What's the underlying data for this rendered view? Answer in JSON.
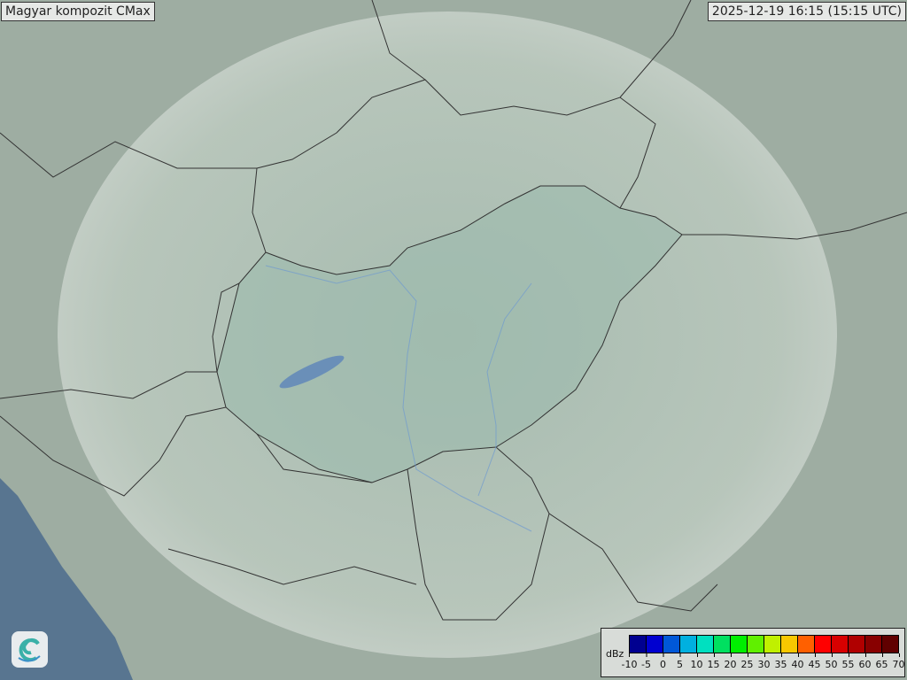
{
  "header": {
    "title": "Magyar kompozit  CMax",
    "timestamp": "2025-12-19 16:15 (15:15 UTC)"
  },
  "legend": {
    "unit": "dBz",
    "ticks": [
      "-10",
      "-5",
      "0",
      "5",
      "10",
      "15",
      "20",
      "25",
      "30",
      "35",
      "40",
      "45",
      "50",
      "55",
      "60",
      "65",
      "70"
    ],
    "colors": [
      "#000090",
      "#0000d0",
      "#0058d8",
      "#00b0e0",
      "#00e0c0",
      "#00e060",
      "#00ee00",
      "#60f000",
      "#c0f000",
      "#f8c800",
      "#ff6000",
      "#ff0000",
      "#d80000",
      "#b00000",
      "#880000",
      "#600000"
    ]
  },
  "logo": {
    "icon": "spiral-logo-icon"
  },
  "colors": {
    "land": "#9fb0a4",
    "radar_coverage": "#b8c8be",
    "sea": "#587590",
    "border": "#333333"
  }
}
